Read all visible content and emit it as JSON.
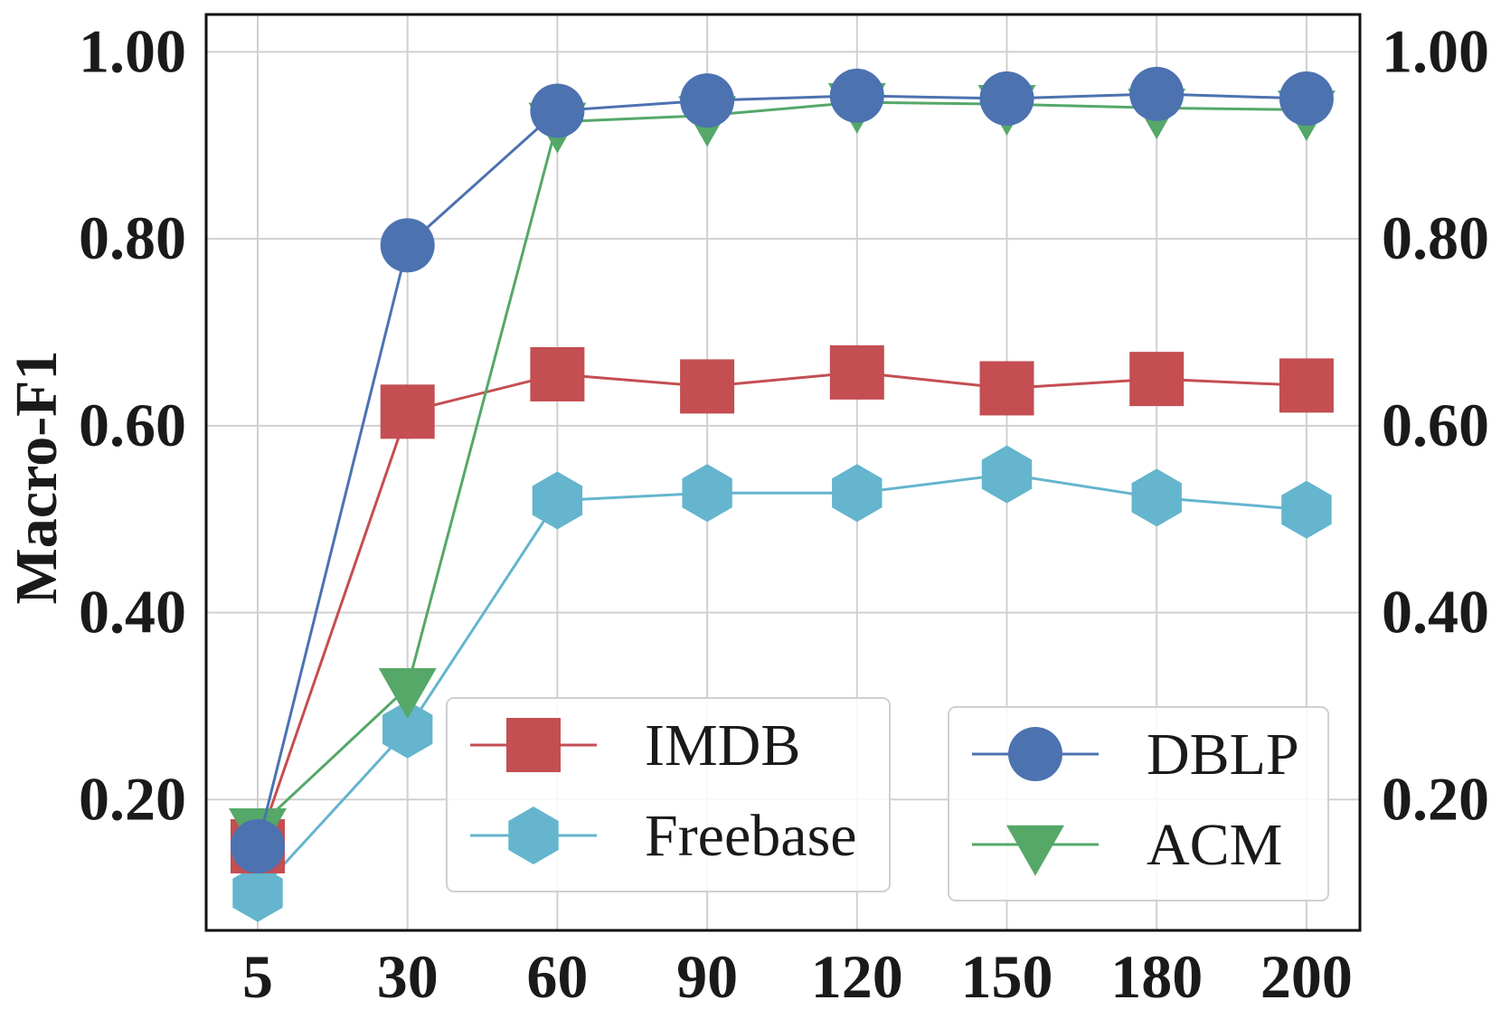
{
  "chart_data": {
    "type": "line",
    "title": "",
    "xlabel": "",
    "ylabel": "Macro-F1",
    "categories": [
      "5",
      "30",
      "60",
      "90",
      "120",
      "150",
      "180",
      "200"
    ],
    "ylim": [
      0.06,
      1.04
    ],
    "yticks": [
      "0.20",
      "0.40",
      "0.60",
      "0.80",
      "1.00"
    ],
    "grid": true,
    "series": [
      {
        "name": "IMDB",
        "color": "#c44e52",
        "marker": "square",
        "values": [
          0.15,
          0.615,
          0.655,
          0.642,
          0.657,
          0.64,
          0.65,
          0.643
        ]
      },
      {
        "name": "Freebase",
        "color": "#64b5cd",
        "marker": "hexagon",
        "values": [
          0.1,
          0.275,
          0.52,
          0.528,
          0.528,
          0.548,
          0.523,
          0.51
        ]
      },
      {
        "name": "DBLP",
        "color": "#4c72b0",
        "marker": "circle",
        "values": [
          0.15,
          0.793,
          0.937,
          0.948,
          0.953,
          0.95,
          0.955,
          0.95
        ]
      },
      {
        "name": "ACM",
        "color": "#55a868",
        "marker": "triangle-down",
        "values": [
          0.17,
          0.32,
          0.925,
          0.932,
          0.946,
          0.944,
          0.94,
          0.938
        ]
      }
    ],
    "legends": [
      {
        "position": "lower-center",
        "entries": [
          "IMDB",
          "Freebase"
        ]
      },
      {
        "position": "lower-right",
        "entries": [
          "DBLP",
          "ACM"
        ]
      }
    ]
  }
}
